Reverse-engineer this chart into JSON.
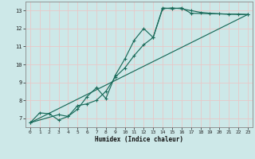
{
  "title": "",
  "xlabel": "Humidex (Indice chaleur)",
  "bg_color": "#cde8e8",
  "grid_color": "#e8c8c8",
  "line_color": "#1a6b5a",
  "xlim": [
    -0.5,
    23.5
  ],
  "ylim": [
    6.5,
    13.5
  ],
  "xticks": [
    0,
    1,
    2,
    3,
    4,
    5,
    6,
    7,
    8,
    9,
    10,
    11,
    12,
    13,
    14,
    15,
    16,
    17,
    18,
    19,
    20,
    21,
    22,
    23
  ],
  "yticks": [
    7,
    8,
    9,
    10,
    11,
    12,
    13
  ],
  "line1_x": [
    0,
    1,
    2,
    3,
    4,
    5,
    6,
    7,
    8,
    9,
    10,
    11,
    12,
    13,
    14,
    15,
    16,
    17,
    18,
    19,
    20,
    21,
    22,
    23
  ],
  "line1_y": [
    6.75,
    7.3,
    7.25,
    6.9,
    7.1,
    7.7,
    7.8,
    8.0,
    8.5,
    9.3,
    9.8,
    10.5,
    11.1,
    11.5,
    13.1,
    13.15,
    13.1,
    13.0,
    12.9,
    12.85,
    12.82,
    12.8,
    12.8,
    12.78
  ],
  "line2_x": [
    0,
    3,
    4,
    5,
    6,
    7,
    8,
    9,
    10,
    11,
    12,
    13,
    14,
    15,
    16,
    17,
    23
  ],
  "line2_y": [
    6.75,
    7.2,
    7.1,
    7.5,
    8.2,
    8.7,
    8.1,
    9.4,
    10.3,
    11.35,
    12.0,
    11.5,
    13.15,
    13.1,
    13.15,
    12.85,
    12.78
  ],
  "line3_x": [
    0,
    23
  ],
  "line3_y": [
    6.75,
    12.78
  ]
}
